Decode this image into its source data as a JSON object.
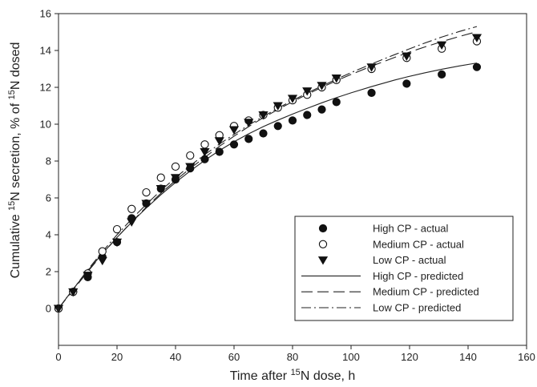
{
  "chart_data": {
    "type": "scatter",
    "xlabel_parts": [
      "Time after ",
      "15",
      "N dose, h"
    ],
    "ylabel_parts": [
      "Cumulative ",
      "15",
      "N secretion, % of ",
      "15",
      "N dosed"
    ],
    "xlim": [
      0,
      160
    ],
    "ylim": [
      -2,
      16
    ],
    "xticks": [
      0,
      20,
      40,
      60,
      80,
      100,
      120,
      140,
      160
    ],
    "yticks": [
      0,
      2,
      4,
      6,
      8,
      10,
      12,
      14,
      16
    ],
    "xtick_labels": [
      "0",
      "20",
      "40",
      "60",
      "80",
      "100",
      "120",
      "140",
      "160"
    ],
    "ytick_labels": [
      "0",
      "2",
      "4",
      "6",
      "8",
      "10",
      "12",
      "14",
      "16"
    ],
    "legend_position": "lower-right",
    "series": [
      {
        "name": "High CP - actual",
        "marker": "filled-circle",
        "x": [
          0,
          5,
          10,
          15,
          20,
          25,
          30,
          35,
          40,
          45,
          50,
          55,
          60,
          65,
          70,
          75,
          80,
          85,
          90,
          95,
          107,
          119,
          131,
          143
        ],
        "y": [
          0,
          0.9,
          1.7,
          2.8,
          3.6,
          4.9,
          5.7,
          6.5,
          7.0,
          7.6,
          8.1,
          8.5,
          8.9,
          9.2,
          9.5,
          9.9,
          10.2,
          10.5,
          10.8,
          11.2,
          11.7,
          12.2,
          12.7,
          13.1
        ]
      },
      {
        "name": "Medium CP - actual",
        "marker": "open-circle",
        "x": [
          0,
          5,
          10,
          15,
          20,
          25,
          30,
          35,
          40,
          45,
          50,
          55,
          60,
          65,
          70,
          75,
          80,
          85,
          90,
          95,
          107,
          119,
          131,
          143
        ],
        "y": [
          0,
          0.9,
          1.9,
          3.1,
          4.3,
          5.4,
          6.3,
          7.1,
          7.7,
          8.3,
          8.9,
          9.4,
          9.9,
          10.2,
          10.5,
          10.9,
          11.3,
          11.6,
          12.0,
          12.4,
          13.0,
          13.6,
          14.1,
          14.5
        ]
      },
      {
        "name": "Low CP - actual",
        "marker": "filled-triangle-down",
        "x": [
          0,
          5,
          10,
          15,
          20,
          25,
          30,
          35,
          40,
          45,
          50,
          55,
          60,
          65,
          70,
          75,
          80,
          85,
          90,
          95,
          107,
          119,
          131,
          143
        ],
        "y": [
          0,
          0.9,
          1.8,
          2.6,
          3.6,
          4.7,
          5.7,
          6.5,
          7.1,
          7.7,
          8.5,
          9.1,
          9.7,
          10.1,
          10.5,
          11.0,
          11.4,
          11.8,
          12.1,
          12.5,
          13.1,
          13.7,
          14.3,
          14.7
        ]
      },
      {
        "name": "High CP - predicted",
        "line": "solid",
        "x": [
          0,
          5,
          10,
          15,
          20,
          25,
          30,
          35,
          40,
          45,
          50,
          55,
          60,
          65,
          70,
          75,
          80,
          85,
          90,
          95,
          100,
          107,
          115,
          119,
          125,
          131,
          137,
          143
        ],
        "y": [
          0,
          1.05,
          2.05,
          2.98,
          3.86,
          4.68,
          5.45,
          6.17,
          6.84,
          7.46,
          8.04,
          8.57,
          9.05,
          9.48,
          9.87,
          10.22,
          10.55,
          10.86,
          11.16,
          11.44,
          11.7,
          12.04,
          12.4,
          12.56,
          12.78,
          12.98,
          13.16,
          13.32
        ]
      },
      {
        "name": "Medium CP - predicted",
        "line": "dashed",
        "x": [
          0,
          5,
          10,
          15,
          20,
          25,
          30,
          35,
          40,
          45,
          50,
          55,
          60,
          65,
          70,
          75,
          80,
          85,
          90,
          95,
          100,
          107,
          115,
          119,
          125,
          131,
          137,
          143
        ],
        "y": [
          0,
          1.0,
          2.0,
          2.95,
          3.85,
          4.7,
          5.5,
          6.25,
          6.95,
          7.6,
          8.2,
          8.8,
          9.35,
          9.87,
          10.35,
          10.8,
          11.22,
          11.62,
          12.0,
          12.36,
          12.7,
          13.15,
          13.63,
          13.86,
          14.18,
          14.48,
          14.76,
          15.02
        ]
      },
      {
        "name": "Low CP - predicted",
        "line": "dash-dot",
        "x": [
          0,
          5,
          10,
          15,
          20,
          25,
          30,
          35,
          40,
          45,
          50,
          55,
          60,
          65,
          70,
          75,
          80,
          85,
          90,
          95,
          100,
          107,
          115,
          119,
          125,
          131,
          137,
          143
        ],
        "y": [
          0,
          1.05,
          2.1,
          3.08,
          4.0,
          4.85,
          5.65,
          6.4,
          7.1,
          7.75,
          8.35,
          8.92,
          9.45,
          9.95,
          10.42,
          10.87,
          11.29,
          11.69,
          12.07,
          12.44,
          12.8,
          13.27,
          13.78,
          14.03,
          14.39,
          14.73,
          15.03,
          15.3
        ]
      }
    ]
  }
}
